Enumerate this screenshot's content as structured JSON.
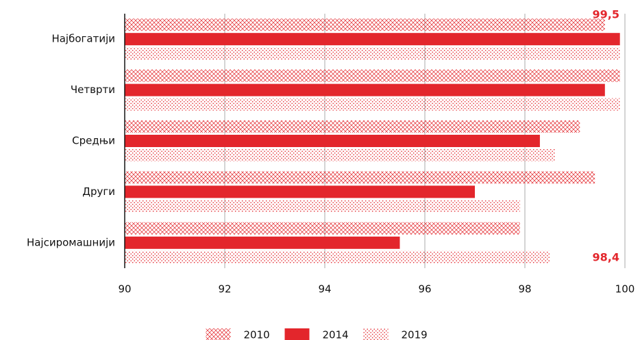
{
  "chart_data": {
    "type": "barh",
    "categories": [
      "Најбогатији",
      "Четврти",
      "Средњи",
      "Други",
      "Најсиромашнији"
    ],
    "series": [
      {
        "name": "2010",
        "color": "#e3262c",
        "pattern": "crosshatch",
        "values": [
          99.6,
          99.9,
          99.1,
          99.4,
          97.9
        ]
      },
      {
        "name": "2014",
        "color": "#e3262c",
        "pattern": "solid",
        "values": [
          99.9,
          99.6,
          98.3,
          97.0,
          95.5
        ]
      },
      {
        "name": "2019",
        "color": "#e3262c",
        "pattern": "dots",
        "values": [
          99.9,
          99.9,
          98.6,
          97.9,
          98.5
        ]
      }
    ],
    "xlim": [
      90,
      100
    ],
    "xticks": [
      90,
      92,
      94,
      96,
      98,
      100
    ],
    "grid": true,
    "annotations": [
      "99,5",
      "98,4"
    ],
    "legend": "bottom"
  }
}
